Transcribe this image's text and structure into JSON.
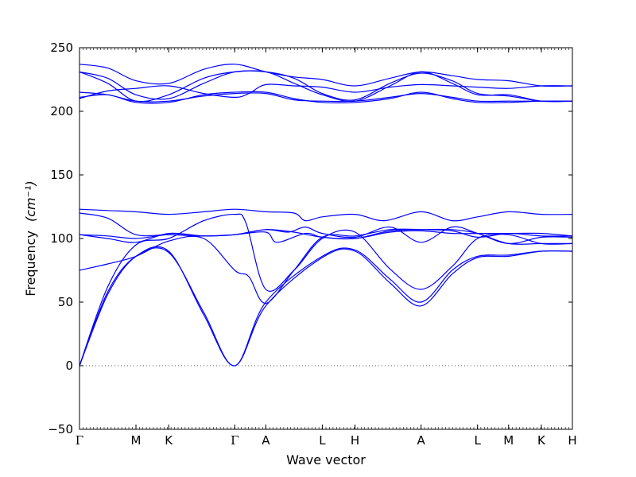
{
  "chart_data": {
    "type": "line",
    "title": "",
    "xlabel": "Wave vector",
    "ylabel": "Frequency",
    "ylabel_unit": "(cm⁻¹)",
    "ylim": [
      -50,
      250
    ],
    "yticks": [
      -50,
      0,
      50,
      100,
      150,
      200,
      250
    ],
    "line_color": "#0000ff",
    "zero_line": true,
    "grid": false,
    "xticks": [
      {
        "label": "Γ",
        "x": 0.0
      },
      {
        "label": "M",
        "x": 1.0
      },
      {
        "label": "K",
        "x": 1.58
      },
      {
        "label": "Γ",
        "x": 2.75
      },
      {
        "label": "A",
        "x": 3.3
      },
      {
        "label": "L",
        "x": 4.3
      },
      {
        "label": "H",
        "x": 4.88
      },
      {
        "label": "A",
        "x": 6.05
      },
      {
        "label": "L",
        "x": 7.05
      },
      {
        "label": "M",
        "x": 7.6
      },
      {
        "label": "K",
        "x": 8.18
      },
      {
        "label": "H",
        "x": 8.73
      }
    ],
    "series": [
      {
        "points": [
          [
            0,
            0
          ],
          [
            0.5,
            56
          ],
          [
            1.0,
            86
          ],
          [
            1.58,
            90
          ],
          [
            2.2,
            40
          ],
          [
            2.75,
            0
          ],
          [
            3.3,
            47
          ],
          [
            4.3,
            85
          ],
          [
            4.88,
            90
          ],
          [
            5.5,
            65
          ],
          [
            6.05,
            47
          ],
          [
            6.6,
            72
          ],
          [
            7.05,
            85
          ],
          [
            7.6,
            86
          ],
          [
            8.18,
            90
          ],
          [
            8.73,
            90
          ]
        ]
      },
      {
        "points": [
          [
            0,
            0
          ],
          [
            0.5,
            58
          ],
          [
            1.0,
            86
          ],
          [
            1.58,
            89
          ],
          [
            2.2,
            42
          ],
          [
            2.75,
            0
          ],
          [
            3.3,
            50
          ],
          [
            4.3,
            86
          ],
          [
            4.88,
            91
          ],
          [
            5.5,
            68
          ],
          [
            6.05,
            50
          ],
          [
            6.6,
            75
          ],
          [
            7.05,
            86
          ],
          [
            7.6,
            87
          ],
          [
            8.18,
            90
          ],
          [
            8.73,
            90
          ]
        ]
      },
      {
        "points": [
          [
            0,
            0
          ],
          [
            0.5,
            62
          ],
          [
            1.0,
            95
          ],
          [
            1.58,
            100
          ],
          [
            2.2,
            114
          ],
          [
            2.75,
            119
          ],
          [
            2.95,
            112
          ],
          [
            3.3,
            60
          ],
          [
            3.8,
            75
          ],
          [
            4.3,
            100
          ],
          [
            4.88,
            105
          ],
          [
            5.5,
            76
          ],
          [
            6.05,
            60
          ],
          [
            6.6,
            78
          ],
          [
            7.05,
            100
          ],
          [
            7.6,
            103
          ],
          [
            8.18,
            96
          ],
          [
            8.73,
            96
          ]
        ]
      },
      {
        "points": [
          [
            0,
            75
          ],
          [
            0.5,
            80
          ],
          [
            1.0,
            86
          ],
          [
            1.58,
            98
          ],
          [
            2.2,
            100
          ],
          [
            2.75,
            75
          ],
          [
            3.0,
            70
          ],
          [
            3.3,
            49
          ],
          [
            3.8,
            75
          ],
          [
            4.3,
            101
          ],
          [
            4.88,
            102
          ],
          [
            5.5,
            107
          ],
          [
            6.05,
            107
          ],
          [
            6.6,
            106
          ],
          [
            7.05,
            101
          ],
          [
            7.6,
            104
          ],
          [
            8.18,
            102
          ],
          [
            8.73,
            102
          ]
        ]
      },
      {
        "points": [
          [
            0,
            103
          ],
          [
            0.5,
            102
          ],
          [
            1.0,
            100
          ],
          [
            1.58,
            103
          ],
          [
            2.2,
            102
          ],
          [
            2.75,
            103
          ],
          [
            3.3,
            107
          ],
          [
            3.8,
            105
          ],
          [
            4.3,
            101
          ],
          [
            4.88,
            100
          ],
          [
            5.5,
            106
          ],
          [
            6.05,
            107
          ],
          [
            6.6,
            107
          ],
          [
            7.05,
            104
          ],
          [
            7.6,
            96
          ],
          [
            8.18,
            96
          ],
          [
            8.73,
            96
          ]
        ]
      },
      {
        "points": [
          [
            0,
            120
          ],
          [
            0.5,
            116
          ],
          [
            1.0,
            103
          ],
          [
            1.58,
            103
          ],
          [
            2.2,
            102
          ],
          [
            2.75,
            103
          ],
          [
            3.3,
            107
          ],
          [
            3.7,
            105
          ],
          [
            4.0,
            109
          ],
          [
            4.3,
            104
          ],
          [
            4.88,
            101
          ],
          [
            5.5,
            109
          ],
          [
            6.05,
            97
          ],
          [
            6.6,
            109
          ],
          [
            7.05,
            104
          ],
          [
            7.6,
            96
          ],
          [
            8.18,
            101
          ],
          [
            8.73,
            101
          ]
        ]
      },
      {
        "points": [
          [
            0,
            103
          ],
          [
            0.5,
            100
          ],
          [
            1.0,
            97
          ],
          [
            1.58,
            104
          ],
          [
            2.2,
            102
          ],
          [
            2.75,
            103
          ],
          [
            3.3,
            105
          ],
          [
            3.5,
            97
          ],
          [
            4.0,
            104
          ],
          [
            4.3,
            101
          ],
          [
            4.88,
            100
          ],
          [
            5.5,
            105
          ],
          [
            6.05,
            106
          ],
          [
            6.6,
            104
          ],
          [
            7.05,
            104
          ],
          [
            7.6,
            104
          ],
          [
            8.18,
            104
          ],
          [
            8.73,
            102
          ]
        ]
      },
      {
        "points": [
          [
            0,
            123
          ],
          [
            0.5,
            122
          ],
          [
            1.0,
            121
          ],
          [
            1.58,
            119
          ],
          [
            2.2,
            121
          ],
          [
            2.75,
            123
          ],
          [
            3.3,
            121
          ],
          [
            3.8,
            120
          ],
          [
            4.0,
            114
          ],
          [
            4.3,
            117
          ],
          [
            4.88,
            119
          ],
          [
            5.4,
            114
          ],
          [
            6.05,
            121
          ],
          [
            6.6,
            114
          ],
          [
            7.05,
            117
          ],
          [
            7.6,
            121
          ],
          [
            8.18,
            119
          ],
          [
            8.73,
            119
          ]
        ]
      },
      {
        "points": [
          [
            0,
            211
          ],
          [
            0.5,
            213
          ],
          [
            1.0,
            207
          ],
          [
            1.58,
            207
          ],
          [
            2.2,
            213
          ],
          [
            2.75,
            215
          ],
          [
            3.3,
            215
          ],
          [
            3.8,
            210
          ],
          [
            4.3,
            207
          ],
          [
            4.88,
            207
          ],
          [
            5.5,
            210
          ],
          [
            6.05,
            215
          ],
          [
            6.6,
            210
          ],
          [
            7.05,
            207
          ],
          [
            7.6,
            207
          ],
          [
            8.18,
            208
          ],
          [
            8.73,
            208
          ]
        ]
      },
      {
        "points": [
          [
            0,
            215
          ],
          [
            0.5,
            213
          ],
          [
            1.0,
            208
          ],
          [
            1.58,
            208
          ],
          [
            2.2,
            212
          ],
          [
            2.75,
            214
          ],
          [
            3.3,
            214
          ],
          [
            3.8,
            209
          ],
          [
            4.3,
            208
          ],
          [
            4.88,
            208
          ],
          [
            5.5,
            211
          ],
          [
            6.05,
            214
          ],
          [
            6.6,
            211
          ],
          [
            7.05,
            208
          ],
          [
            7.6,
            208
          ],
          [
            8.18,
            208
          ],
          [
            8.73,
            208
          ]
        ]
      },
      {
        "points": [
          [
            0,
            231
          ],
          [
            0.5,
            222
          ],
          [
            1.0,
            208
          ],
          [
            1.58,
            213
          ],
          [
            2.2,
            226
          ],
          [
            2.75,
            231
          ],
          [
            3.3,
            231
          ],
          [
            3.8,
            222
          ],
          [
            4.3,
            213
          ],
          [
            4.88,
            208
          ],
          [
            5.5,
            220
          ],
          [
            6.05,
            231
          ],
          [
            6.6,
            222
          ],
          [
            7.05,
            213
          ],
          [
            7.6,
            213
          ],
          [
            8.18,
            208
          ],
          [
            8.73,
            208
          ]
        ]
      },
      {
        "points": [
          [
            0,
            231
          ],
          [
            0.5,
            226
          ],
          [
            1.0,
            213
          ],
          [
            1.58,
            210
          ],
          [
            2.2,
            222
          ],
          [
            2.75,
            231
          ],
          [
            3.3,
            231
          ],
          [
            3.8,
            226
          ],
          [
            4.3,
            214
          ],
          [
            4.88,
            209
          ],
          [
            5.5,
            222
          ],
          [
            6.05,
            230
          ],
          [
            6.6,
            224
          ],
          [
            7.05,
            214
          ],
          [
            7.6,
            212
          ],
          [
            8.18,
            208
          ],
          [
            8.73,
            208
          ]
        ]
      },
      {
        "points": [
          [
            0,
            210
          ],
          [
            0.5,
            216
          ],
          [
            1.0,
            218
          ],
          [
            1.58,
            220
          ],
          [
            2.2,
            214
          ],
          [
            2.75,
            211
          ],
          [
            3.0,
            214
          ],
          [
            3.3,
            221
          ],
          [
            3.8,
            220
          ],
          [
            4.3,
            219
          ],
          [
            4.88,
            215
          ],
          [
            5.5,
            219
          ],
          [
            6.05,
            221
          ],
          [
            6.6,
            220
          ],
          [
            7.05,
            219
          ],
          [
            7.6,
            218
          ],
          [
            8.18,
            220
          ],
          [
            8.73,
            220
          ]
        ]
      },
      {
        "points": [
          [
            0,
            237
          ],
          [
            0.5,
            234
          ],
          [
            1.0,
            224
          ],
          [
            1.58,
            222
          ],
          [
            2.2,
            233
          ],
          [
            2.75,
            237
          ],
          [
            3.3,
            231
          ],
          [
            3.8,
            227
          ],
          [
            4.3,
            225
          ],
          [
            4.88,
            220
          ],
          [
            5.5,
            226
          ],
          [
            6.05,
            231
          ],
          [
            6.6,
            228
          ],
          [
            7.05,
            225
          ],
          [
            7.6,
            224
          ],
          [
            8.18,
            220
          ],
          [
            8.73,
            220
          ]
        ]
      }
    ]
  }
}
